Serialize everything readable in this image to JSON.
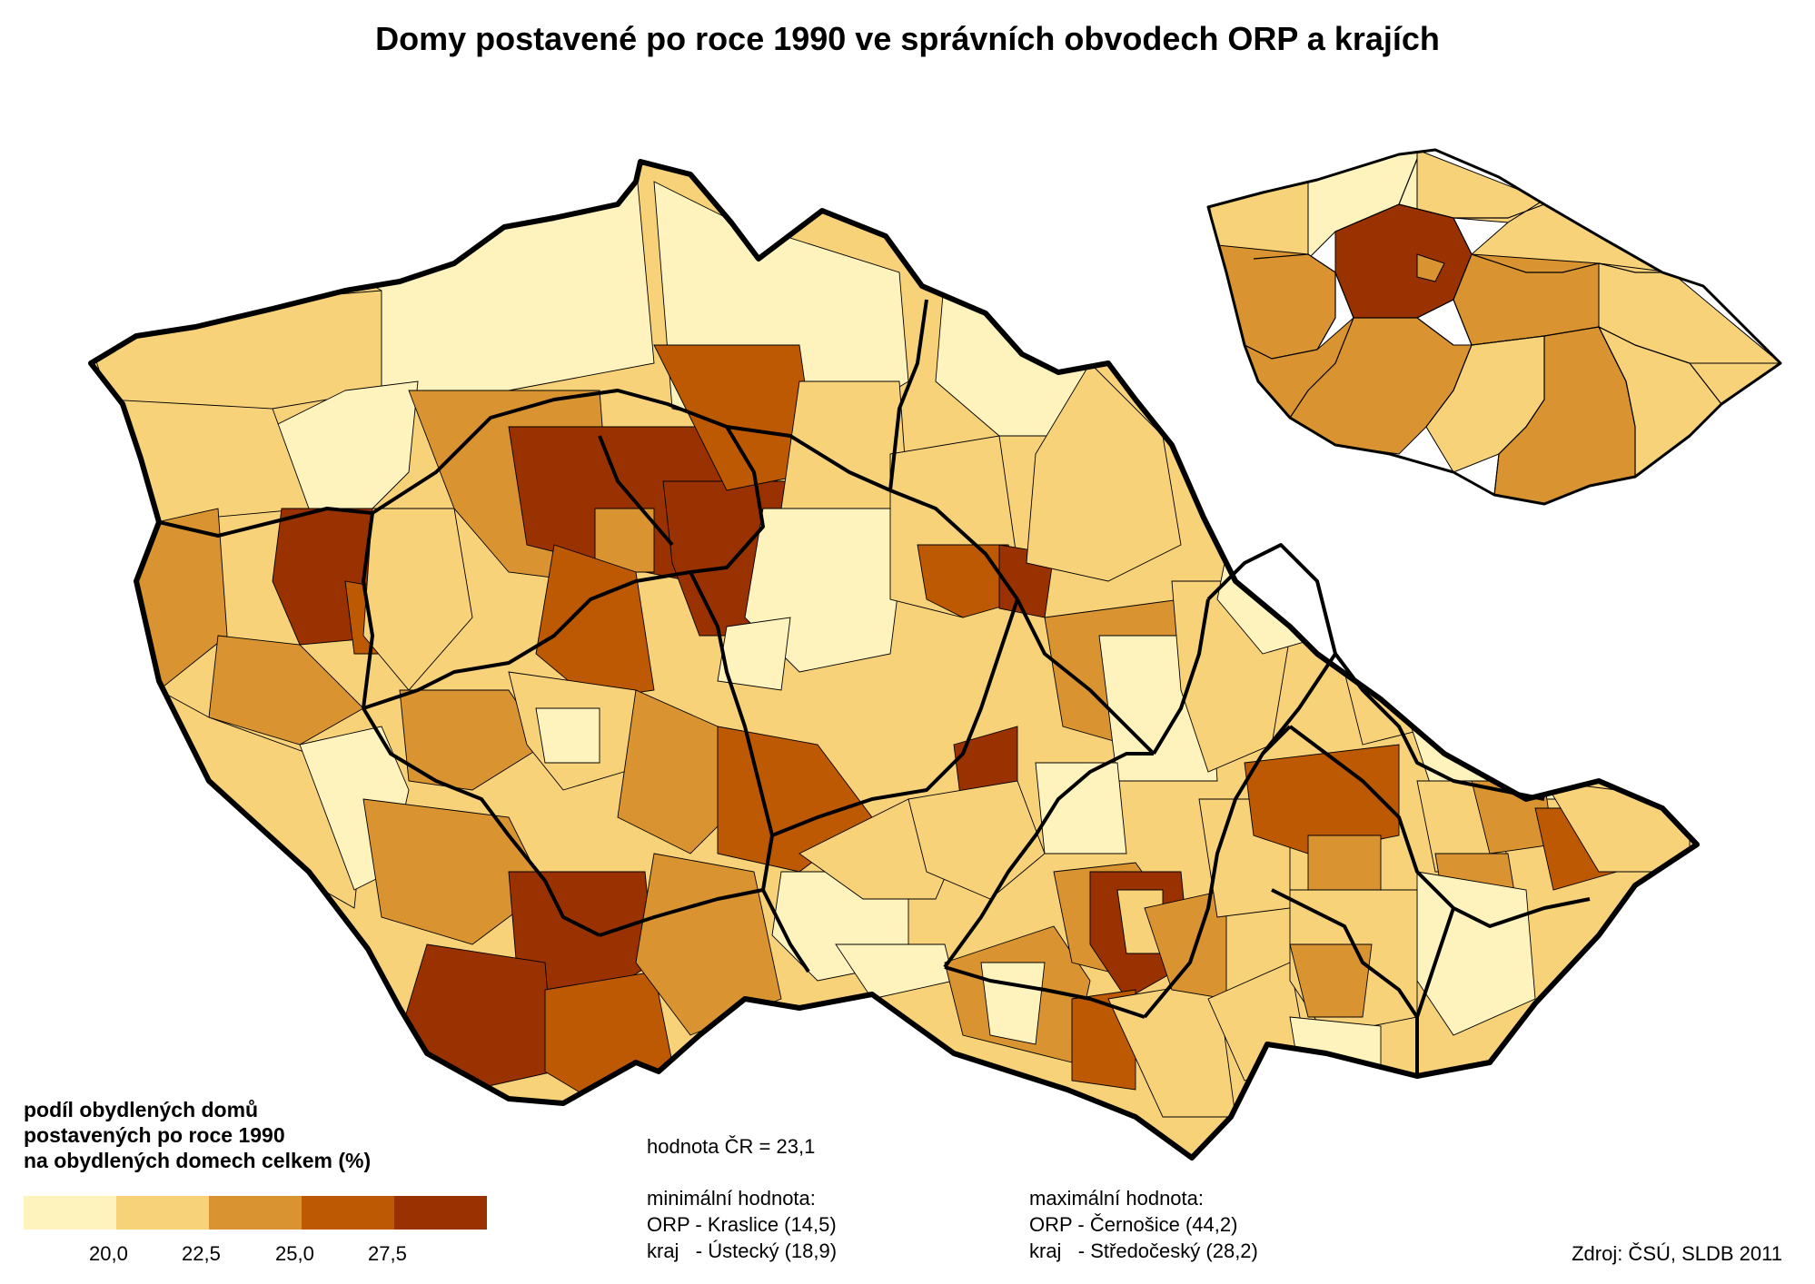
{
  "title": "Domy postavené po roce 1990 ve správních obvodech ORP a krajích",
  "legend": {
    "title_lines": [
      "podíl obydlených domů",
      "postavených po roce 1990",
      "na obydlených domech celkem (%)"
    ],
    "classes": [
      {
        "color": "#fff3bd",
        "label": "< 20,0"
      },
      {
        "color": "#f8d279",
        "label": "20,0 – 22,5"
      },
      {
        "color": "#d99431",
        "label": "22,5 – 25,0"
      },
      {
        "color": "#bd5803",
        "label": "25,0 – 27,5"
      },
      {
        "color": "#9a3101",
        "label": "> 27,5"
      }
    ],
    "ticks": [
      "20,0",
      "22,5",
      "25,0",
      "27,5"
    ]
  },
  "national_value": "hodnota ČR = 23,1",
  "minimum": {
    "heading": "minimální hodnota:",
    "orp": "ORP - Kraslice (14,5)",
    "kraj": "kraj   - Ústecký (18,9)"
  },
  "maximum": {
    "heading": "maximální hodnota:",
    "orp": "ORP - Černošice (44,2)",
    "kraj": "kraj   - Středočeský (28,2)"
  },
  "source": "Zdroj: ČSÚ, SLDB 2011",
  "colors": {
    "c1": "#fff3bd",
    "c2": "#f8d279",
    "c3": "#d99431",
    "c4": "#bd5803",
    "c5": "#9a3101",
    "border": "#000000"
  }
}
